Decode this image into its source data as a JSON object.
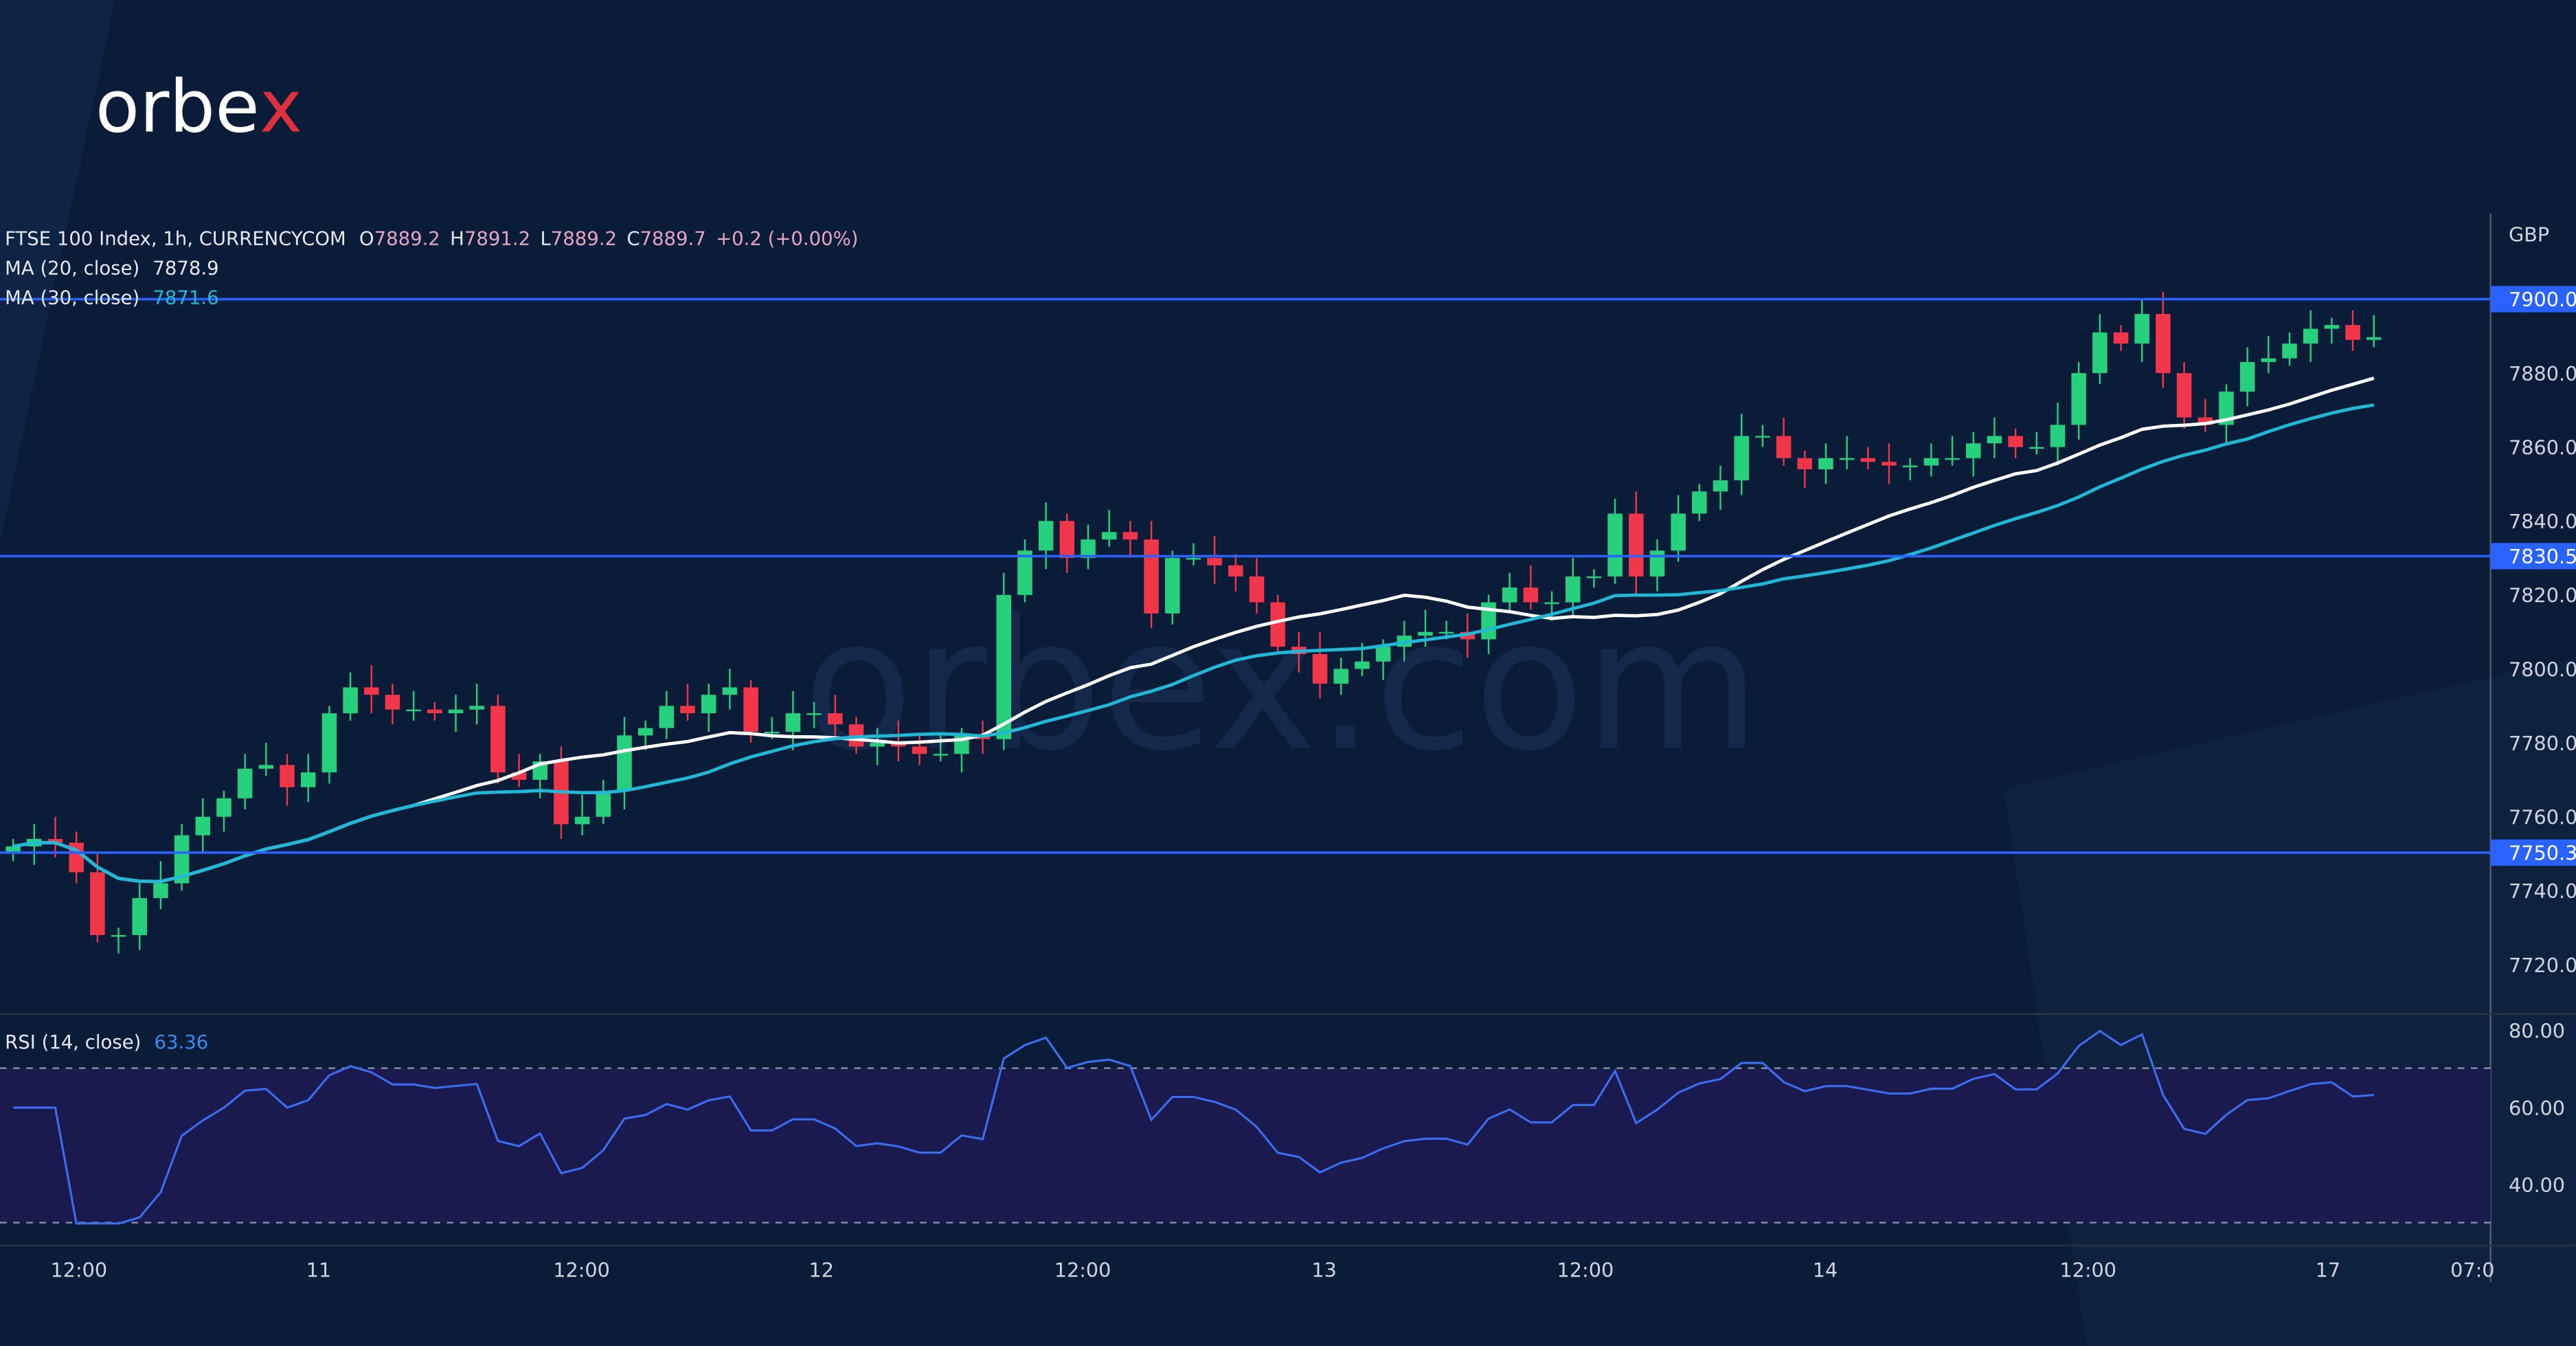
{
  "logo": {
    "text_main": "orbe",
    "text_accent": "x",
    "accent_color": "#e0323c"
  },
  "watermark": "orbex.com",
  "legend": {
    "symbol": "FTSE 100 Index, 1h, CURRENCYCOM",
    "o_label": "O",
    "o": "7889.2",
    "h_label": "H",
    "h": "7891.2",
    "l_label": "L",
    "l": "7889.2",
    "c_label": "C",
    "c": "7889.7",
    "change": "+0.2 (+0.00%)",
    "ma20_label": "MA (20, close)",
    "ma20_value": "7878.9",
    "ma30_label": "MA (30, close)",
    "ma30_value": "7871.6",
    "rsi_label": "RSI (14, close)",
    "rsi_value": "63.36"
  },
  "chart_data": {
    "type": "candlestick",
    "currency": "GBP",
    "ylim": [
      7712,
      7904
    ],
    "y_ticks": [
      "7880.0",
      "7860.0",
      "7840.0",
      "7820.0",
      "7800.0",
      "7780.0",
      "7760.0",
      "7740.0",
      "7720.0"
    ],
    "horizontal_levels": [
      {
        "value": 7900.0,
        "label": "7900.0"
      },
      {
        "value": 7830.5,
        "label": "7830.5"
      },
      {
        "value": 7750.3,
        "label": "7750.3"
      }
    ],
    "x_ticks": [
      "12:00",
      "11",
      "12:00",
      "12",
      "12:00",
      "13",
      "12:00",
      "14",
      "12:00",
      "17",
      "07:0"
    ],
    "close": [
      7752,
      7754,
      7753,
      7745,
      7728,
      7728,
      7738,
      7742,
      7755,
      7760,
      7765,
      7773,
      7774,
      7768,
      7772,
      7788,
      7795,
      7793,
      7789,
      7789,
      7788,
      7789,
      7790,
      7772,
      7770,
      7775,
      7758,
      7760,
      7767,
      7782,
      7784,
      7790,
      7788,
      7793,
      7795,
      7783,
      7783,
      7788,
      7788,
      7785,
      7779,
      7780,
      7779,
      7777,
      7777,
      7782,
      7781,
      7820,
      7832,
      7840,
      7830,
      7835,
      7837,
      7835,
      7815,
      7830,
      7830,
      7828,
      7825,
      7818,
      7806,
      7804,
      7796,
      7800,
      7802,
      7806,
      7809,
      7810,
      7810,
      7808,
      7818,
      7822,
      7818,
      7818,
      7825,
      7825,
      7842,
      7825,
      7832,
      7842,
      7848,
      7851,
      7863,
      7863,
      7857,
      7854,
      7857,
      7857,
      7856,
      7855,
      7855,
      7857,
      7857,
      7861,
      7863,
      7860,
      7860,
      7866,
      7880,
      7891,
      7888,
      7896,
      7880,
      7868,
      7866,
      7875,
      7883,
      7884,
      7888,
      7892,
      7893,
      7889,
      7889.7
    ],
    "ma_series": [
      {
        "name": "MA (20, close)",
        "period": 20,
        "color": "#ffffff"
      },
      {
        "name": "MA (30, close)",
        "period": 30,
        "color": "#1fb8d6"
      }
    ],
    "rsi": {
      "period": 14,
      "ylim": [
        28,
        84
      ],
      "ticks": [
        "80.00",
        "60.00",
        "40.00"
      ],
      "band": [
        30,
        70
      ],
      "color": "#3c6cf0"
    },
    "colors": {
      "up": "#26d07c",
      "down": "#f2364a",
      "level": "#2962ff",
      "background": "#0a1c37"
    }
  }
}
